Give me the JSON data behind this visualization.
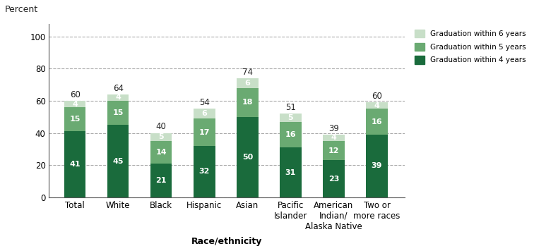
{
  "categories": [
    "Total",
    "White",
    "Black",
    "Hispanic",
    "Asian",
    "Pacific\nIslander",
    "American\nIndian/\nAlaska Native",
    "Two or\nmore races"
  ],
  "four_year": [
    41,
    45,
    21,
    32,
    50,
    31,
    23,
    39
  ],
  "five_year": [
    15,
    15,
    14,
    17,
    18,
    16,
    12,
    16
  ],
  "six_year": [
    4,
    4,
    5,
    6,
    6,
    5,
    4,
    4
  ],
  "total_labels": [
    60,
    64,
    40,
    54,
    74,
    51,
    39,
    60
  ],
  "color_4yr": "#1a6b3c",
  "color_5yr": "#6aaa72",
  "color_6yr": "#c8dfc8",
  "bar_width": 0.5,
  "ylim": [
    0,
    108
  ],
  "yticks": [
    0,
    20,
    40,
    60,
    80,
    100
  ],
  "percent_label": "Percent",
  "xlabel": "Race/ethnicity",
  "legend_labels": [
    "Graduation within 6 years",
    "Graduation within 5 years",
    "Graduation within 4 years"
  ],
  "grid_color": "#aaaaaa",
  "background_color": "#ffffff",
  "text_color_inside": "#ffffff",
  "text_color_outside": "#222222",
  "fontsize_inside": 8,
  "fontsize_total": 8.5,
  "fontsize_tick": 8.5
}
